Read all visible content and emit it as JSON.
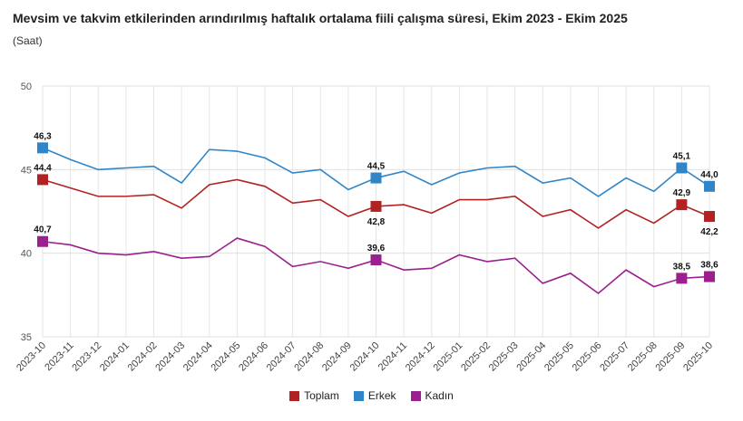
{
  "chart_data": {
    "type": "line",
    "title": "Mevsim ve takvim etkilerinden arındırılmış haftalık ortalama fiili çalışma süresi, Ekim 2023 - Ekim 2025",
    "subtitle": "(Saat)",
    "ylim": [
      35,
      50
    ],
    "yticks": [
      35,
      40,
      45,
      50
    ],
    "categories": [
      "2023-10",
      "2023-11",
      "2023-12",
      "2024-01",
      "2024-02",
      "2024-03",
      "2024-04",
      "2024-05",
      "2024-06",
      "2024-07",
      "2024-08",
      "2024-09",
      "2024-10",
      "2024-11",
      "2024-12",
      "2025-01",
      "2025-02",
      "2025-03",
      "2025-04",
      "2025-05",
      "2025-06",
      "2025-07",
      "2025-08",
      "2025-09",
      "2025-10"
    ],
    "series": [
      {
        "name": "Toplam",
        "color": "#b22222",
        "values": [
          44.4,
          43.9,
          43.4,
          43.4,
          43.5,
          42.7,
          44.1,
          44.4,
          44.0,
          43.0,
          43.2,
          42.2,
          42.8,
          42.9,
          42.4,
          43.2,
          43.2,
          43.4,
          42.2,
          42.6,
          41.5,
          42.6,
          41.8,
          42.9,
          42.2
        ],
        "labels": {
          "0": "44,4",
          "12": "42,8",
          "23": "42,9",
          "24": "42,2"
        }
      },
      {
        "name": "Erkek",
        "color": "#2e86c9",
        "values": [
          46.3,
          45.6,
          45.0,
          45.1,
          45.2,
          44.2,
          46.2,
          46.1,
          45.7,
          44.8,
          45.0,
          43.8,
          44.5,
          44.9,
          44.1,
          44.8,
          45.1,
          45.2,
          44.2,
          44.5,
          43.4,
          44.5,
          43.7,
          45.1,
          44.0
        ],
        "labels": {
          "0": "46,3",
          "12": "44,5",
          "23": "45,1",
          "24": "44,0"
        }
      },
      {
        "name": "Kadın",
        "color": "#9b1f8f",
        "values": [
          40.7,
          40.5,
          40.0,
          39.9,
          40.1,
          39.7,
          39.8,
          40.9,
          40.4,
          39.2,
          39.5,
          39.1,
          39.6,
          39.0,
          39.1,
          39.9,
          39.5,
          39.7,
          38.2,
          38.8,
          37.6,
          39.0,
          38.0,
          38.5,
          38.6
        ],
        "labels": {
          "0": "40,7",
          "12": "39,6",
          "23": "38,5",
          "24": "38,6"
        }
      }
    ]
  }
}
